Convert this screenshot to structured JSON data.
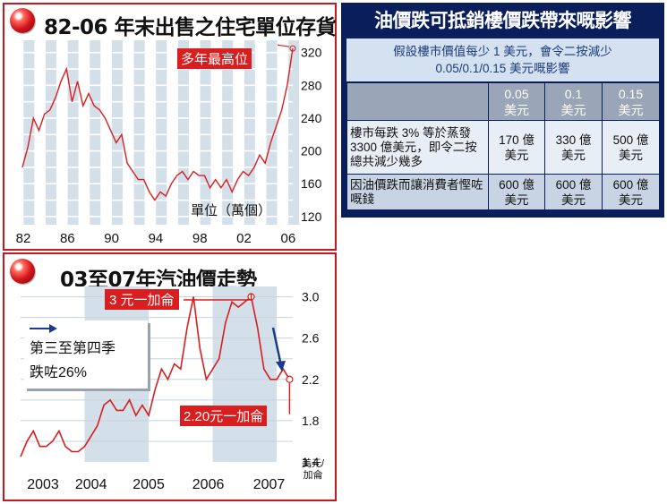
{
  "chart1": {
    "title": "82-06 年末出售之住宅單位存貨",
    "unit_label": "單位（萬個）",
    "annotation": "多年最高位",
    "x_ticks": [
      "82",
      "86",
      "90",
      "94",
      "98",
      "02",
      "06"
    ],
    "y_ticks": [
      "320",
      "280",
      "240",
      "200",
      "160",
      "120"
    ]
  },
  "chart2": {
    "title": "03至07年汽油價走勢",
    "peak_label": "3 元一加侖",
    "end_label": "2.20元一加侖",
    "drop_note_line1": "第三至第四季",
    "drop_note_line2": "跌咗26%",
    "x_ticks": [
      "2003",
      "2004",
      "2005",
      "2006",
      "2007"
    ],
    "y_ticks": [
      "3.0",
      "2.6",
      "2.2",
      "1.8",
      "1.4"
    ],
    "unit_line1": "美元/",
    "unit_line2": "加侖"
  },
  "table": {
    "title": "油價跌可抵銷樓價跌帶來嘅影響",
    "subtitle_line1": "假設樓市價值每少 1 美元，會令二按減少",
    "subtitle_line2": "0.05/0.1/0.15 美元嘅影響",
    "headers": [
      {
        "top": "0.05",
        "bottom": "美元"
      },
      {
        "top": "0.1",
        "bottom": "美元"
      },
      {
        "top": "0.15",
        "bottom": "美元"
      }
    ],
    "rows": [
      {
        "label": "樓市每跌 3% 等於蒸發 3300 億美元，即令二按總共減少幾多",
        "cells": [
          {
            "top": "170 億",
            "bottom": "美元"
          },
          {
            "top": "330 億",
            "bottom": "美元"
          },
          {
            "top": "500 億",
            "bottom": "美元"
          }
        ]
      },
      {
        "label": "因油價跌而讓消費者慳咗嘅錢",
        "cells": [
          {
            "top": "600 億",
            "bottom": "美元"
          },
          {
            "top": "600 億",
            "bottom": "美元"
          },
          {
            "top": "600 億",
            "bottom": "美元"
          }
        ]
      }
    ]
  },
  "chart_data": [
    {
      "type": "line",
      "title": "82-06 年末出售之住宅單位存貨",
      "ylabel": "單位（萬個）",
      "ylim": [
        110,
        335
      ],
      "x": [
        1982.0,
        1982.5,
        1983.0,
        1983.5,
        1984.0,
        1984.5,
        1985.0,
        1985.5,
        1986.0,
        1986.5,
        1987.0,
        1987.5,
        1988.0,
        1988.5,
        1989.0,
        1989.5,
        1990.0,
        1990.5,
        1991.0,
        1991.5,
        1992.0,
        1992.5,
        1993.0,
        1993.5,
        1994.0,
        1994.5,
        1995.0,
        1995.5,
        1996.0,
        1996.5,
        1997.0,
        1997.5,
        1998.0,
        1998.5,
        1999.0,
        1999.5,
        2000.0,
        2000.5,
        2001.0,
        2001.5,
        2002.0,
        2002.5,
        2003.0,
        2003.5,
        2004.0,
        2004.5,
        2005.0,
        2005.5,
        2006.0,
        2006.5
      ],
      "values": [
        180,
        205,
        240,
        225,
        245,
        250,
        265,
        285,
        300,
        260,
        285,
        255,
        270,
        255,
        250,
        240,
        225,
        210,
        220,
        185,
        175,
        165,
        165,
        150,
        140,
        150,
        145,
        160,
        170,
        175,
        165,
        175,
        170,
        170,
        155,
        165,
        155,
        165,
        150,
        165,
        175,
        170,
        180,
        195,
        185,
        210,
        230,
        250,
        280,
        325
      ],
      "series": [
        {
          "name": "",
          "color": "#d81e1e"
        }
      ]
    },
    {
      "type": "line",
      "title": "03至07年汽油價走勢",
      "ylabel": "美元/加侖",
      "ylim": [
        1.4,
        3.1
      ],
      "x": [
        2003.0,
        2003.1,
        2003.2,
        2003.3,
        2003.4,
        2003.5,
        2003.6,
        2003.7,
        2003.8,
        2003.9,
        2004.0,
        2004.1,
        2004.2,
        2004.3,
        2004.4,
        2004.5,
        2004.6,
        2004.7,
        2004.8,
        2004.9,
        2005.0,
        2005.1,
        2005.2,
        2005.3,
        2005.4,
        2005.5,
        2005.6,
        2005.7,
        2005.8,
        2005.9,
        2006.0,
        2006.1,
        2006.2,
        2006.3,
        2006.4,
        2006.5,
        2006.6,
        2006.7,
        2006.8,
        2006.9,
        2007.0,
        2007.1,
        2007.2
      ],
      "values": [
        1.45,
        1.6,
        1.7,
        1.55,
        1.55,
        1.6,
        1.7,
        1.55,
        1.5,
        1.5,
        1.55,
        1.65,
        1.75,
        1.95,
        2.0,
        1.9,
        1.9,
        2.0,
        1.85,
        1.95,
        1.85,
        2.1,
        2.3,
        2.2,
        2.35,
        2.3,
        2.7,
        3.0,
        2.5,
        2.2,
        2.3,
        2.4,
        2.75,
        2.95,
        2.9,
        2.95,
        3.0,
        2.7,
        2.3,
        2.2,
        2.2,
        2.3,
        2.2
      ],
      "series": [
        {
          "name": "",
          "color": "#d81e1e"
        }
      ]
    }
  ]
}
